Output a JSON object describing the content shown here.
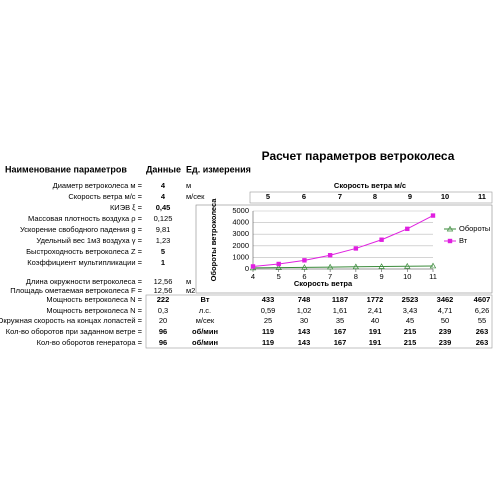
{
  "title": "Расчет параметров ветроколеса",
  "headers": [
    "Наименование параметров",
    "Данные",
    "Ед. измерения"
  ],
  "params": [
    {
      "label": "Диаметр ветроколеса м =",
      "value": "4",
      "unit": "м",
      "bold": true
    },
    {
      "label": "Скорость ветра м/с =",
      "value": "4",
      "unit": "м/сек",
      "bold": true
    },
    {
      "label": "КИЭВ ξ =",
      "value": "0,45",
      "bold": true
    },
    {
      "label": "Массовая плотность воздуха ρ =",
      "value": "0,125",
      "bold": false
    },
    {
      "label": "Ускорение свободного падения g =",
      "value": "9,81",
      "bold": false
    },
    {
      "label": "Удельный вес 1м3 воздуха γ =",
      "value": "1,23",
      "bold": false
    },
    {
      "label": "Быстроходность ветроколеса Z =",
      "value": "5",
      "bold": true
    },
    {
      "label": "Коэффициент мультипликации =",
      "value": "1",
      "bold": true
    },
    {
      "label": "Длина окружности ветроколеса =",
      "value": "12,56",
      "unit": "м",
      "bold": false
    },
    {
      "label": "Площадь ометаемая ветроколеса F =",
      "value": "12,56",
      "unit": "м2",
      "bold": false
    }
  ],
  "wind_header": "Скорость ветра м/с",
  "wind_speeds": [
    "5",
    "6",
    "7",
    "8",
    "9",
    "10",
    "11"
  ],
  "results": [
    {
      "label": "Мощность ветроколеса N =",
      "value": "222",
      "unit": "Вт",
      "bold": true,
      "cells": [
        "433",
        "748",
        "1187",
        "1772",
        "2523",
        "3462",
        "4607"
      ]
    },
    {
      "label": "Мощность ветроколеса N =",
      "value": "0,3",
      "unit": "л.с.",
      "bold": false,
      "cells": [
        "0,59",
        "1,02",
        "1,61",
        "2,41",
        "3,43",
        "4,71",
        "6,26"
      ]
    },
    {
      "label": "Окружная скорость на концах лопастей =",
      "value": "20",
      "unit": "м/сек",
      "bold": false,
      "cells": [
        "25",
        "30",
        "35",
        "40",
        "45",
        "50",
        "55"
      ]
    },
    {
      "label": "Кол-во оборотов при заданном ветре =",
      "value": "96",
      "unit": "об/мин",
      "bold": true,
      "cells": [
        "119",
        "143",
        "167",
        "191",
        "215",
        "239",
        "263"
      ]
    },
    {
      "label": "Кол-во оборотов генератора =",
      "value": "96",
      "unit": "об/мин",
      "bold": true,
      "cells": [
        "119",
        "143",
        "167",
        "191",
        "215",
        "239",
        "263"
      ]
    }
  ],
  "chart_data": {
    "type": "line",
    "y_label": "Обороты ветроколеса",
    "x_label": "Скорость ветра",
    "x": [
      4,
      5,
      6,
      7,
      8,
      9,
      10,
      11
    ],
    "xlim": [
      4,
      11
    ],
    "xticks": [
      4,
      5,
      6,
      7,
      8,
      9,
      10,
      11
    ],
    "ylim": [
      0,
      5000
    ],
    "yticks": [
      0,
      1000,
      2000,
      3000,
      4000,
      5000
    ],
    "grid": true,
    "series": [
      {
        "name": "Обороты",
        "color": "#3a8a3a",
        "marker": "triangle",
        "values": [
          96,
          119,
          143,
          167,
          191,
          215,
          239,
          263
        ]
      },
      {
        "name": "Вт",
        "color": "#e020e0",
        "marker": "square",
        "values": [
          222,
          433,
          748,
          1187,
          1772,
          2523,
          3462,
          4607
        ]
      }
    ]
  }
}
